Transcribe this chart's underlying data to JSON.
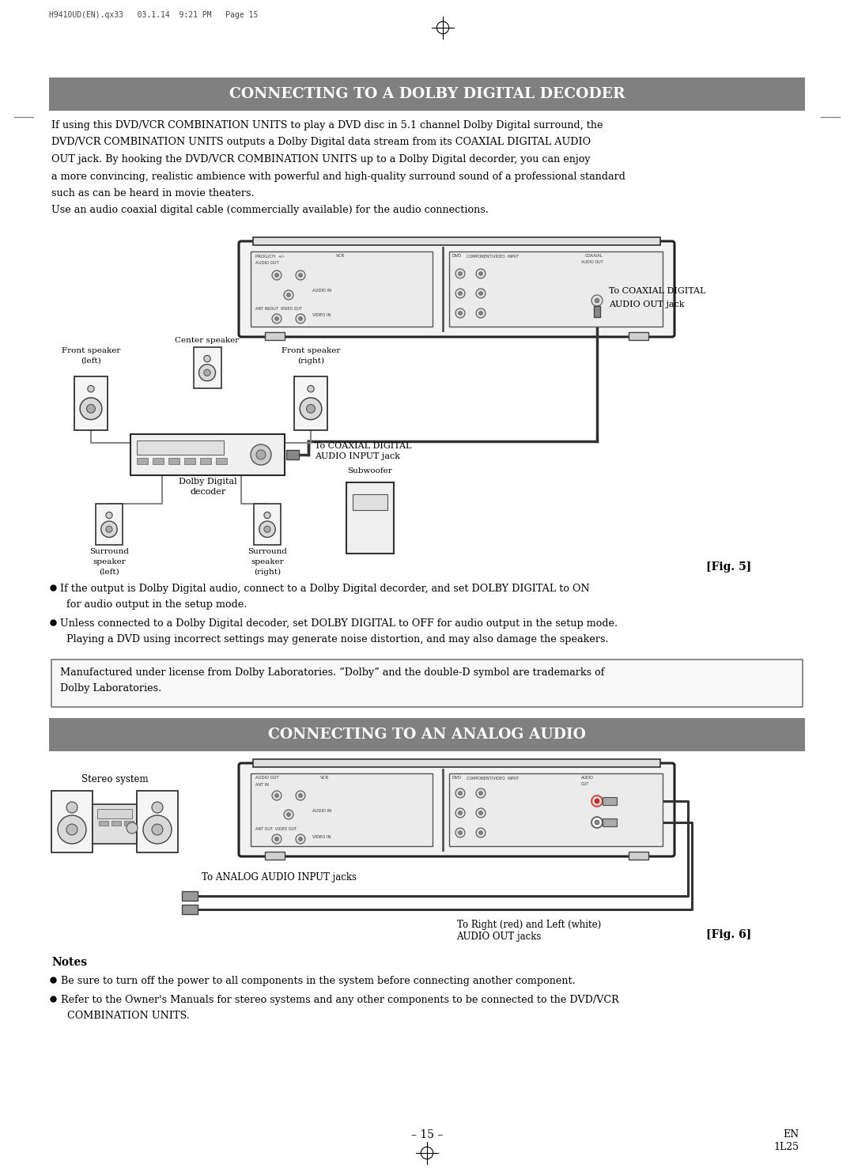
{
  "page_header": "H9410UD(EN).qx33   03.1.14  9:21 PM   Page 15",
  "title1": "CONNECTING TO A DOLBY DIGITAL DECODER",
  "title2": "CONNECTING TO AN ANALOG AUDIO",
  "title_bg": "#808080",
  "title_text_color": "#ffffff",
  "bg_color": "#ffffff",
  "para1_lines": [
    "If using this DVD/VCR COMBINATION UNITS to play a DVD disc in 5.1 channel Dolby Digital surround, the",
    "DVD/VCR COMBINATION UNITS outputs a Dolby Digital data stream from its COAXIAL DIGITAL AUDIO",
    "OUT jack. By hooking the DVD/VCR COMBINATION UNITS up to a Dolby Digital decorder, you can enjoy",
    "a more convincing, realistic ambience with powerful and high-quality surround sound of a professional standard",
    "such as can be heard in movie theaters.",
    "Use an audio coaxial digital cable (commercially available) for the audio connections."
  ],
  "bullet1": "If the output is Dolby Digital audio, connect to a Dolby Digital decorder, and set DOLBY DIGITAL to ON",
  "bullet1b": "  for audio output in the setup mode.",
  "bullet2": "Unless connected to a Dolby Digital decoder, set DOLBY DIGITAL to OFF for audio output in the setup mode.",
  "bullet2b": "  Playing a DVD using incorrect settings may generate noise distortion, and may also damage the speakers.",
  "dolby_line1": "Manufactured under license from Dolby Laboratories. “Dolby” and the double-D symbol are trademarks of",
  "dolby_line2": "Dolby Laboratories.",
  "fig5_label": "[Fig. 5]",
  "fig6_label": "[Fig. 6]",
  "notes_title": "Notes",
  "note1": "Be sure to turn off the power to all components in the system before connecting another component.",
  "note2a": "Refer to the Owner's Manuals for stereo systems and any other components to be connected to the DVD/VCR",
  "note2b": "  COMBINATION UNITS.",
  "page_num": "– 15 –",
  "page_code_en": "EN",
  "page_code_num": "1L25"
}
